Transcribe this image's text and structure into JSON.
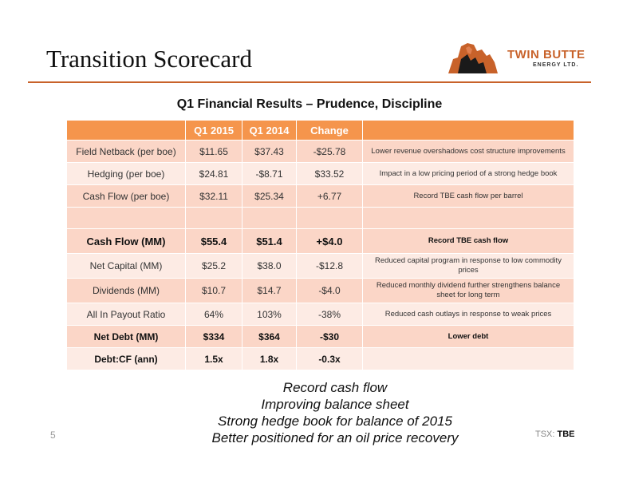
{
  "slide": {
    "title": "Transition Scorecard",
    "subtitle": "Q1 Financial Results – Prudence, Discipline",
    "page_number": "5",
    "ticker_prefix": "TSX:",
    "ticker": "TBE"
  },
  "logo": {
    "name": "TWIN BUTTE",
    "sub": "ENERGY LTD.",
    "color": "#c8622a"
  },
  "table": {
    "headers": [
      "",
      "Q1 2015",
      "Q1 2014",
      "Change",
      ""
    ],
    "rows": [
      {
        "label": "Field Netback (per boe)",
        "q1_2015": "$11.65",
        "q1_2014": "$37.43",
        "change": "-$25.78",
        "comment": "Lower revenue overshadows cost structure improvements"
      },
      {
        "label": "Hedging (per boe)",
        "q1_2015": "$24.81",
        "q1_2014": "-$8.71",
        "change": "$33.52",
        "comment": "Impact in a low pricing period of a strong hedge book"
      },
      {
        "label": "Cash Flow (per boe)",
        "q1_2015": "$32.11",
        "q1_2014": "$25.34",
        "change": "+6.77",
        "comment": "Record TBE cash flow per barrel"
      },
      {
        "label": "",
        "q1_2015": "",
        "q1_2014": "",
        "change": "",
        "comment": ""
      },
      {
        "label": "Cash Flow (MM)",
        "q1_2015": "$55.4",
        "q1_2014": "$51.4",
        "change": "+$4.0",
        "comment": "Record TBE cash flow"
      },
      {
        "label": "Net Capital (MM)",
        "q1_2015": "$25.2",
        "q1_2014": "$38.0",
        "change": "-$12.8",
        "comment": "Reduced capital program in response to low commodity prices"
      },
      {
        "label": "Dividends (MM)",
        "q1_2015": "$10.7",
        "q1_2014": "$14.7",
        "change": "-$4.0",
        "comment": "Reduced monthly dividend further strengthens balance sheet for long term"
      },
      {
        "label": "All In Payout Ratio",
        "q1_2015": "64%",
        "q1_2014": "103%",
        "change": "-38%",
        "comment": "Reduced cash outlays in response to weak prices"
      },
      {
        "label": "Net Debt (MM)",
        "q1_2015": "$334",
        "q1_2014": "$364",
        "change": "-$30",
        "comment": "Lower debt"
      },
      {
        "label": "Debt:CF (ann)",
        "q1_2015": "1.5x",
        "q1_2014": "1.8x",
        "change": "-0.3x",
        "comment": ""
      }
    ]
  },
  "summary": {
    "lines": [
      "Record cash flow",
      "Improving balance sheet",
      "Strong hedge book for balance of 2015",
      "Better positioned for an oil price recovery"
    ]
  },
  "colors": {
    "accent": "#c8622a",
    "header_fill": "#f5954c",
    "row_dark": "#fbd6c7",
    "row_light": "#fdebe4"
  }
}
